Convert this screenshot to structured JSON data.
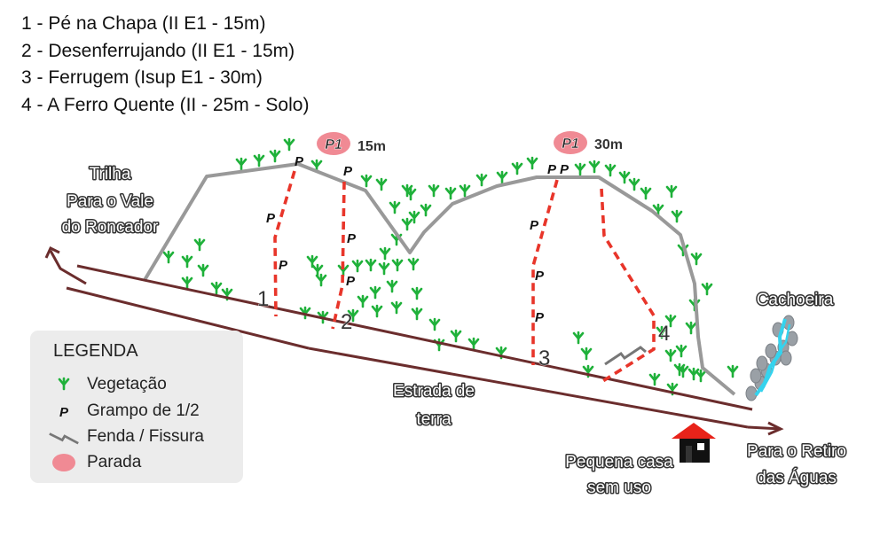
{
  "routes": [
    "1 - Pé na Chapa (II E1 - 15m)",
    "2 - Desenferrujando (II E1 - 15m)",
    "3 - Ferrugem (Isup E1 - 30m)",
    "4 - A Ferro Quente (II - 25m - Solo)"
  ],
  "legend": {
    "title": "LEGENDA",
    "items": [
      {
        "label": "Vegetação",
        "icon": "vegetation-icon"
      },
      {
        "label": "Grampo de 1/2",
        "icon": "bolt-icon"
      },
      {
        "label": "Fenda / Fissura",
        "icon": "crack-icon"
      },
      {
        "label": "Parada",
        "icon": "anchor-stop-icon"
      }
    ]
  },
  "map": {
    "trail_label": [
      "Trilha",
      "Para o Vale",
      "do Roncador"
    ],
    "road_label": [
      "Estrada de",
      "terra"
    ],
    "exit_label": [
      "Para o Retiro",
      "das Águas"
    ],
    "house_label": [
      "Pequena casa",
      "sem uso"
    ],
    "waterfall_label": "Cachoeira",
    "bolt_symbol": "P",
    "route_numbers": [
      "1",
      "2",
      "3",
      "4"
    ],
    "stops": [
      {
        "badge": "P1",
        "height": "15m"
      },
      {
        "badge": "P1",
        "height": "30m"
      }
    ]
  },
  "colors": {
    "road": "#6b2d2d",
    "route_line": "#e8352a",
    "rock_outline": "#999999",
    "vegetation": "#1fb13a",
    "stop_badge": "#f08a94",
    "house_roof": "#e8231a",
    "water": "#34d3ee",
    "stones": "#9aa0a6"
  }
}
